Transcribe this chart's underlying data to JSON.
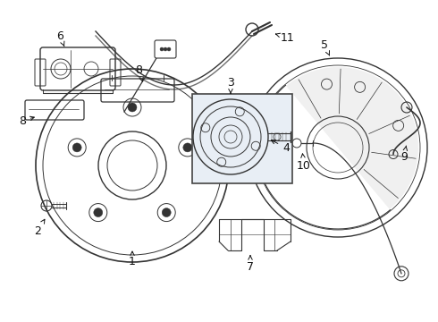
{
  "bg_color": "#ffffff",
  "line_color": "#333333",
  "box_fill": "#e8eef5",
  "box_edge": "#444444",
  "label_color": "#111111",
  "figsize": [
    4.9,
    3.6
  ],
  "dpi": 100
}
